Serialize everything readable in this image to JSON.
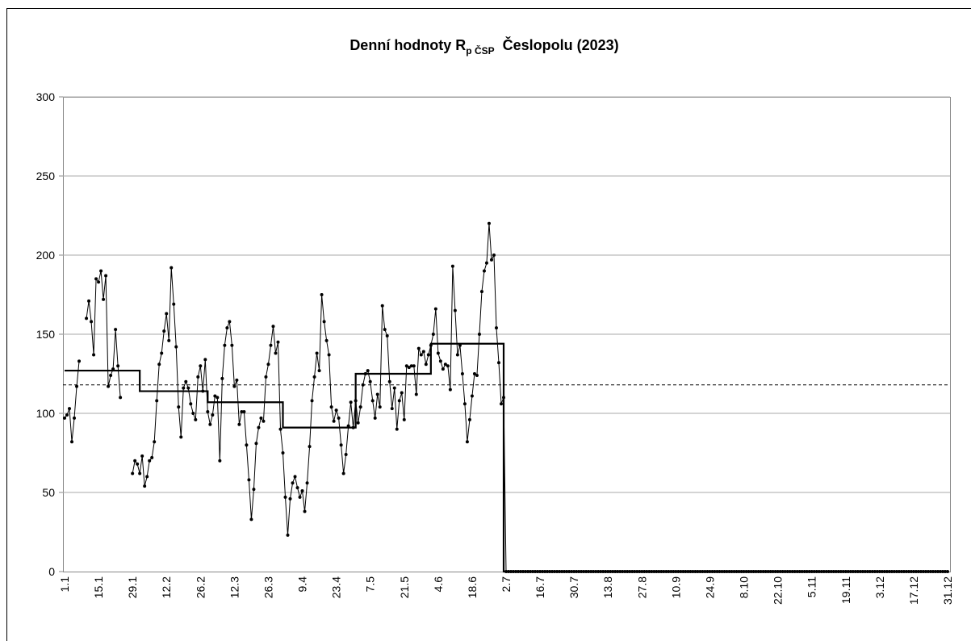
{
  "chart_data": {
    "type": "line",
    "title": "Denní hodnoty R",
    "title_sub": "p ČSP",
    "title_rest": "Česlopolu (2023)",
    "categories": [
      "1.1",
      null,
      null,
      null,
      null,
      null,
      null,
      null,
      null,
      null,
      null,
      null,
      null,
      null,
      "15.1",
      null,
      null,
      null,
      null,
      null,
      null,
      null,
      null,
      null,
      null,
      null,
      null,
      null,
      "29.1",
      null,
      null,
      null,
      null,
      null,
      null,
      null,
      null,
      null,
      null,
      null,
      null,
      null,
      "12.2",
      null,
      null,
      null,
      null,
      null,
      null,
      null,
      null,
      null,
      null,
      null,
      null,
      null,
      "26.2",
      null,
      null,
      null,
      null,
      null,
      null,
      null,
      null,
      null,
      null,
      null,
      null,
      null,
      "12.3",
      null,
      null,
      null,
      null,
      null,
      null,
      null,
      null,
      null,
      null,
      null,
      null,
      null,
      "26.3",
      null,
      null,
      null,
      null,
      null,
      null,
      null,
      null,
      null,
      null,
      null,
      null,
      null,
      "9.4",
      null,
      null,
      null,
      null,
      null,
      null,
      null,
      null,
      null,
      null,
      null,
      null,
      null,
      "23.4",
      null,
      null,
      null,
      null,
      null,
      null,
      null,
      null,
      null,
      null,
      null,
      null,
      null,
      "7.5",
      null,
      null,
      null,
      null,
      null,
      null,
      null,
      null,
      null,
      null,
      null,
      null,
      null,
      "21.5",
      null,
      null,
      null,
      null,
      null,
      null,
      null,
      null,
      null,
      null,
      null,
      null,
      null,
      "4.6",
      null,
      null,
      null,
      null,
      null,
      null,
      null,
      null,
      null,
      null,
      null,
      null,
      null,
      "18.6",
      null,
      null,
      null,
      null,
      null,
      null,
      null,
      null,
      null,
      null,
      null,
      null,
      null,
      "2.7",
      null,
      null,
      null,
      null,
      null,
      null,
      null,
      null,
      null,
      null,
      null,
      null,
      null,
      "16.7",
      null,
      null,
      null,
      null,
      null,
      null,
      null,
      null,
      null,
      null,
      null,
      null,
      null,
      "30.7",
      null,
      null,
      null,
      null,
      null,
      null,
      null,
      null,
      null,
      null,
      null,
      null,
      null,
      "13.8",
      null,
      null,
      null,
      null,
      null,
      null,
      null,
      null,
      null,
      null,
      null,
      null,
      null,
      "27.8",
      null,
      null,
      null,
      null,
      null,
      null,
      null,
      null,
      null,
      null,
      null,
      null,
      null,
      "10.9",
      null,
      null,
      null,
      null,
      null,
      null,
      null,
      null,
      null,
      null,
      null,
      null,
      null,
      "24.9",
      null,
      null,
      null,
      null,
      null,
      null,
      null,
      null,
      null,
      null,
      null,
      null,
      null,
      "8.10",
      null,
      null,
      null,
      null,
      null,
      null,
      null,
      null,
      null,
      null,
      null,
      null,
      null,
      "22.10",
      null,
      null,
      null,
      null,
      null,
      null,
      null,
      null,
      null,
      null,
      null,
      null,
      null,
      "5.11",
      null,
      null,
      null,
      null,
      null,
      null,
      null,
      null,
      null,
      null,
      null,
      null,
      null,
      "19.11",
      null,
      null,
      null,
      null,
      null,
      null,
      null,
      null,
      null,
      null,
      null,
      null,
      null,
      "3.12",
      null,
      null,
      null,
      null,
      null,
      null,
      null,
      null,
      null,
      null,
      null,
      null,
      null,
      "17.12",
      null,
      null,
      null,
      null,
      null,
      null,
      null,
      null,
      null,
      null,
      null,
      null,
      null,
      "31.12"
    ],
    "series": [
      {
        "color": "#000000",
        "markers": true,
        "step": false,
        "values": [
          97,
          99,
          103,
          82,
          97,
          117,
          133,
          null,
          null,
          160,
          171,
          158,
          137,
          185,
          183,
          190,
          172,
          187,
          117,
          124,
          128,
          153,
          130,
          110,
          null,
          null,
          null,
          null,
          62,
          70,
          68,
          62,
          73,
          54,
          60,
          70,
          72,
          82,
          108,
          131,
          138,
          152,
          163,
          146,
          192,
          169,
          142,
          104,
          85,
          116,
          120,
          116,
          106,
          100,
          96,
          123,
          130,
          114,
          134,
          101,
          93,
          99,
          111,
          110,
          70,
          122,
          143,
          154,
          158,
          143,
          117,
          121,
          93,
          101,
          101,
          80,
          58,
          33,
          52,
          81,
          91,
          97,
          95,
          123,
          131,
          143,
          155,
          138,
          145,
          90,
          75,
          47,
          23,
          46,
          56,
          60,
          53,
          47,
          51,
          38,
          56,
          79,
          108,
          123,
          138,
          127,
          175,
          158,
          146,
          137,
          104,
          95,
          102,
          97,
          80,
          62,
          74,
          92,
          107,
          91,
          108,
          94,
          104,
          118,
          125,
          127,
          120,
          108,
          97,
          112,
          104,
          168,
          153,
          149,
          120,
          103,
          116,
          90,
          108,
          113,
          96,
          130,
          129,
          130,
          130,
          112,
          141,
          137,
          139,
          131,
          137,
          143,
          150,
          166,
          138,
          133,
          128,
          131,
          130,
          115,
          193,
          165,
          137,
          143,
          125,
          106,
          82,
          96,
          111,
          125,
          124,
          150,
          177,
          190,
          195,
          220,
          197,
          200,
          154,
          132,
          106,
          110,
          0,
          0,
          0,
          0,
          0,
          0,
          0,
          0,
          0,
          0,
          0,
          0,
          0,
          0,
          0,
          0,
          0,
          0,
          0,
          0,
          0,
          0,
          0,
          0,
          0,
          0,
          0,
          0,
          0,
          0,
          0,
          0,
          0,
          0,
          0,
          0,
          0,
          0,
          0,
          0,
          0,
          0,
          0,
          0,
          0,
          0,
          0,
          0,
          0,
          0,
          0,
          0,
          0,
          0,
          0,
          0,
          0,
          0,
          0,
          0,
          0,
          0,
          0,
          0,
          0,
          0,
          0,
          0,
          0,
          0,
          0,
          0,
          0,
          0,
          0,
          0,
          0,
          0,
          0,
          0,
          0,
          0,
          0,
          0,
          0,
          0,
          0,
          0,
          0,
          0,
          0,
          0,
          0,
          0,
          0,
          0,
          0,
          0,
          0,
          0,
          0,
          0,
          0,
          0,
          0,
          0,
          0,
          0,
          0,
          0,
          0,
          0,
          0,
          0,
          0,
          0,
          0,
          0,
          0,
          0,
          0,
          0,
          0,
          0,
          0,
          0,
          0,
          0,
          0,
          0,
          0,
          0,
          0,
          0,
          0,
          0,
          0,
          0,
          0,
          0,
          0,
          0,
          0,
          0,
          0,
          0,
          0,
          0,
          0,
          0,
          0,
          0,
          0,
          0,
          0,
          0,
          0,
          0,
          0,
          0,
          0,
          0,
          0,
          0,
          0,
          0,
          0,
          0,
          0,
          0,
          0,
          0,
          0,
          0,
          0,
          0,
          0,
          0,
          0,
          0,
          0,
          0,
          0
        ]
      },
      {
        "color": "#000000",
        "markers": false,
        "step": true,
        "values": [
          127,
          127,
          127,
          127,
          127,
          127,
          127,
          127,
          127,
          127,
          127,
          127,
          127,
          127,
          127,
          127,
          127,
          127,
          127,
          127,
          127,
          127,
          127,
          127,
          127,
          127,
          127,
          127,
          127,
          127,
          127,
          114,
          114,
          114,
          114,
          114,
          114,
          114,
          114,
          114,
          114,
          114,
          114,
          114,
          114,
          114,
          114,
          114,
          114,
          114,
          114,
          114,
          114,
          114,
          114,
          114,
          114,
          114,
          114,
          107,
          107,
          107,
          107,
          107,
          107,
          107,
          107,
          107,
          107,
          107,
          107,
          107,
          107,
          107,
          107,
          107,
          107,
          107,
          107,
          107,
          107,
          107,
          107,
          107,
          107,
          107,
          107,
          107,
          107,
          107,
          91,
          91,
          91,
          91,
          91,
          91,
          91,
          91,
          91,
          91,
          91,
          91,
          91,
          91,
          91,
          91,
          91,
          91,
          91,
          91,
          91,
          91,
          91,
          91,
          91,
          91,
          91,
          91,
          91,
          91,
          125,
          125,
          125,
          125,
          125,
          125,
          125,
          125,
          125,
          125,
          125,
          125,
          125,
          125,
          125,
          125,
          125,
          125,
          125,
          125,
          125,
          125,
          125,
          125,
          125,
          125,
          125,
          125,
          125,
          125,
          125,
          144,
          144,
          144,
          144,
          144,
          144,
          144,
          144,
          144,
          144,
          144,
          144,
          144,
          144,
          144,
          144,
          144,
          144,
          144,
          144,
          144,
          144,
          144,
          144,
          144,
          144,
          144,
          144,
          144,
          144,
          0,
          0,
          0,
          0,
          0,
          0,
          0,
          0,
          0,
          0,
          0,
          0,
          0,
          0,
          0,
          0,
          0,
          0,
          0,
          0,
          0,
          0,
          0,
          0,
          0,
          0,
          0,
          0,
          0,
          0,
          0,
          0,
          0,
          0,
          0,
          0,
          0,
          0,
          0,
          0,
          0,
          0,
          0,
          0,
          0,
          0,
          0,
          0,
          0,
          0,
          0,
          0,
          0,
          0,
          0,
          0,
          0,
          0,
          0,
          0,
          0,
          0,
          0,
          0,
          0,
          0,
          0,
          0,
          0,
          0,
          0,
          0,
          0,
          0,
          0,
          0,
          0,
          0,
          0,
          0,
          0,
          0,
          0,
          0,
          0,
          0,
          0,
          0,
          0,
          0,
          0,
          0,
          0,
          0,
          0,
          0,
          0,
          0,
          0,
          0,
          0,
          0,
          0,
          0,
          0,
          0,
          0,
          0,
          0,
          0,
          0,
          0,
          0,
          0,
          0,
          0,
          0,
          0,
          0,
          0,
          0,
          0,
          0,
          0,
          0,
          0,
          0,
          0,
          0,
          0,
          0,
          0,
          0,
          0,
          0,
          0,
          0,
          0,
          0,
          0,
          0,
          0,
          0,
          0,
          0,
          0,
          0,
          0,
          0,
          0,
          0,
          0,
          0,
          0,
          0,
          0,
          0,
          0,
          0,
          0,
          0,
          0,
          0,
          0,
          0,
          0,
          0,
          0,
          0,
          0,
          0,
          0,
          0,
          0,
          0,
          0,
          0,
          0,
          0,
          0,
          0,
          0,
          0,
          0
        ]
      }
    ],
    "reference": 118,
    "ylim": [
      0,
      300
    ],
    "yticks": [
      0,
      50,
      100,
      150,
      200,
      250,
      300
    ],
    "grid": true
  }
}
